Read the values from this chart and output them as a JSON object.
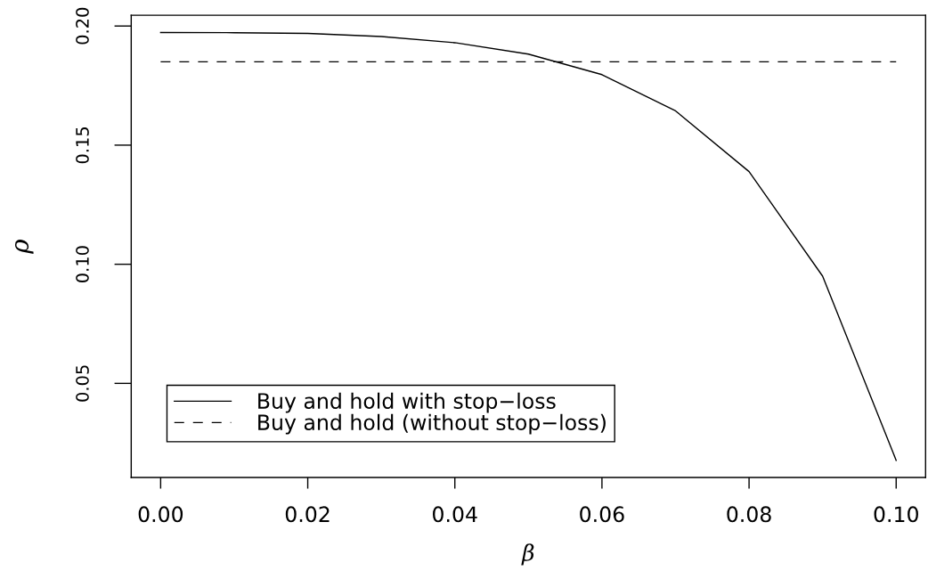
{
  "chart_data": {
    "type": "line",
    "xlabel": "β",
    "ylabel": "ρ",
    "x": [
      0,
      0.01,
      0.02,
      0.03,
      0.04,
      0.05,
      0.06,
      0.07,
      0.08,
      0.09,
      0.1
    ],
    "series": [
      {
        "name": "Buy and hold with stop−loss",
        "color": "#000000",
        "line_style": "solid",
        "values": [
          0.1973,
          0.1972,
          0.1969,
          0.1956,
          0.193,
          0.1882,
          0.1796,
          0.1644,
          0.1389,
          0.095,
          0.0177
        ]
      },
      {
        "name": "Buy and hold (without stop−loss)",
        "color": "#000000",
        "line_style": "dashed",
        "x": [
          0,
          0.1
        ],
        "values": [
          0.185,
          0.185
        ]
      }
    ],
    "xlim": [
      -0.004,
      0.104
    ],
    "ylim": [
      0.0105,
      0.2045
    ],
    "xticks": [
      {
        "value": 0,
        "label": "0.00"
      },
      0.02,
      0.04,
      0.06,
      0.08,
      {
        "value": 0.1,
        "label": "0.10"
      }
    ],
    "yticks": [
      0.05,
      {
        "value": 0.1,
        "label": "0.10"
      },
      0.15,
      {
        "value": 0.2,
        "label": "0.20"
      }
    ],
    "legend": "bottom left"
  }
}
